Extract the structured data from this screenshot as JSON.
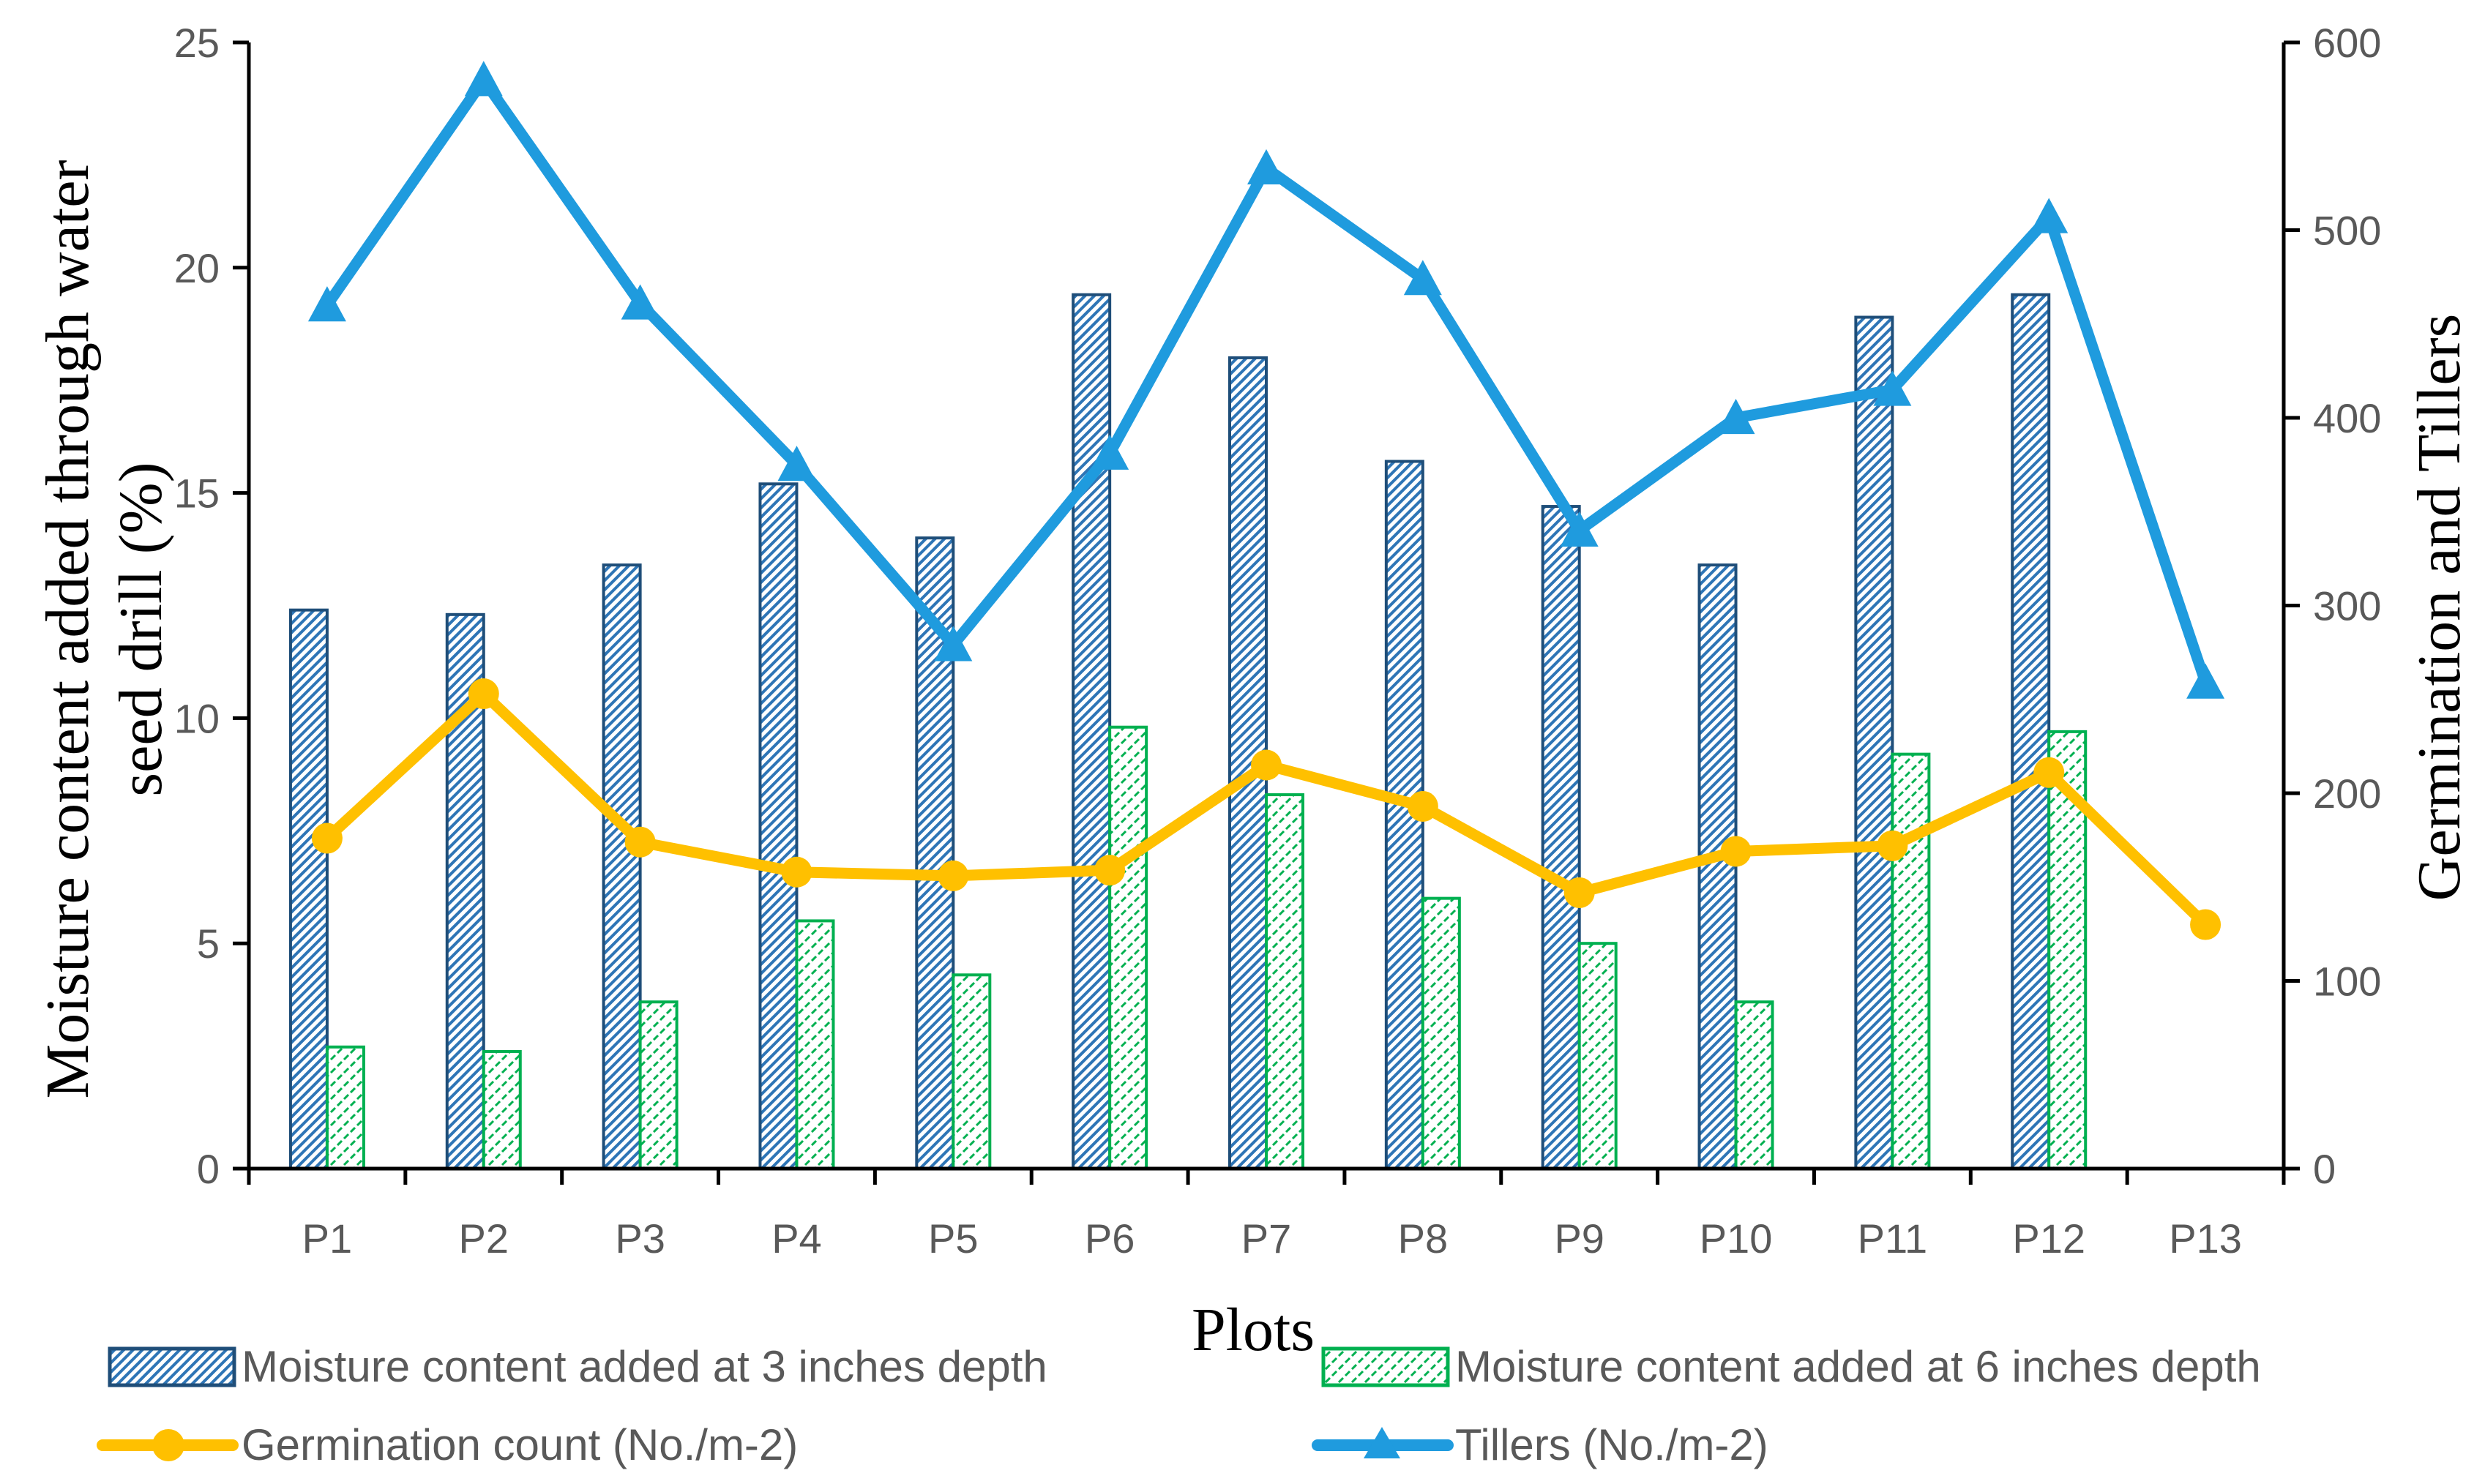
{
  "chart_data": {
    "type": "bar+line",
    "categories": [
      "P1",
      "P2",
      "P3",
      "P4",
      "P5",
      "P6",
      "P7",
      "P8",
      "P9",
      "P10",
      "P11",
      "P12",
      "P13"
    ],
    "xlabel": "Plots",
    "ylabel_left": "Moisture content added through water seed drill (%)",
    "ylabel_left_lines": [
      "Moisture content added through water",
      "seed drill (%)"
    ],
    "ylabel_right": "Germination and Tillers",
    "ylim_left": [
      0,
      25
    ],
    "yticks_left": [
      0,
      5,
      10,
      15,
      20,
      25
    ],
    "ylim_right": [
      0,
      600
    ],
    "yticks_right": [
      0,
      100,
      200,
      300,
      400,
      500,
      600
    ],
    "grid": false,
    "legend_position": "bottom",
    "series": [
      {
        "name": "Moisture content added at 3 inches depth",
        "type": "bar",
        "axis": "left",
        "color": "#2e75b6",
        "values": [
          12.4,
          12.3,
          13.4,
          15.2,
          14.0,
          19.4,
          18.0,
          15.7,
          14.7,
          13.4,
          18.9,
          19.4,
          null
        ]
      },
      {
        "name": "Moisture content added at 6 inches depth",
        "type": "bar",
        "axis": "left",
        "color": "#00b050",
        "values": [
          2.7,
          2.6,
          3.7,
          5.5,
          4.3,
          9.8,
          8.3,
          6.0,
          5.0,
          3.7,
          9.2,
          9.7,
          null
        ]
      },
      {
        "name": "Germination count (No./m-2)",
        "type": "line",
        "axis": "right",
        "marker": "circle",
        "color": "#ffc000",
        "values": [
          176,
          253,
          174,
          158,
          156,
          159,
          215,
          193,
          147,
          169,
          172,
          211,
          130
        ]
      },
      {
        "name": "Tillers (No./m-2)",
        "type": "line",
        "axis": "right",
        "marker": "triangle",
        "color": "#1f9bde",
        "values": [
          460,
          580,
          461,
          375,
          279,
          381,
          533,
          474,
          340,
          400,
          415,
          507,
          259
        ]
      }
    ]
  }
}
